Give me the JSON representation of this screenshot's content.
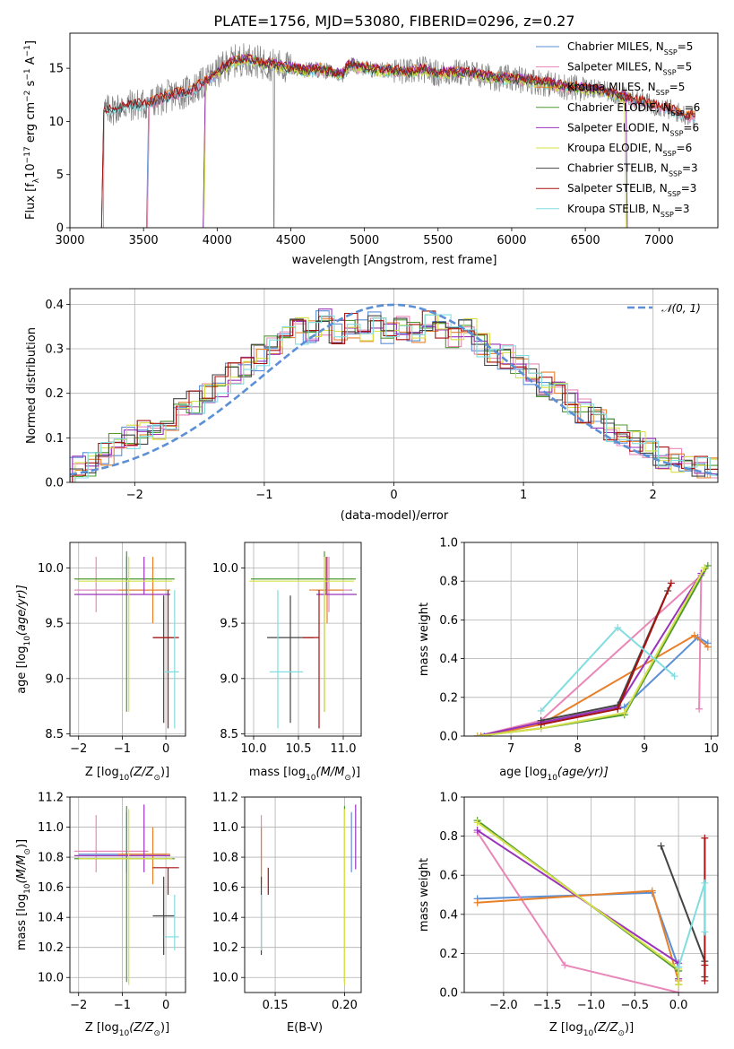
{
  "title": "PLATE=1756, MJD=53080, FIBERID=0296, z=0.27",
  "colors": {
    "chabrier_miles": "#5b8fd6",
    "salpeter_miles": "#e887b8",
    "kroupa_miles": "#e8802a",
    "chabrier_elodie": "#4e9a30",
    "salpeter_elodie": "#9933bb",
    "kroupa_elodie": "#d6e04a",
    "chabrier_stelib": "#444444",
    "salpeter_stelib": "#aa1111",
    "kroupa_stelib": "#80dde0",
    "data": "#808080",
    "normal": "#5b8fd6"
  },
  "chart_data": [
    {
      "type": "line",
      "name": "spectrum",
      "xlabel": "wavelength [Angstrom, rest frame]",
      "ylabel_prefix": "Flux [f",
      "ylabel_sub": "λ",
      "ylabel_rest": "10",
      "ylabel_sup": "−17",
      "ylabel_end": " erg cm",
      "ylabel_sup2": "−2",
      "ylabel_s": " s",
      "ylabel_sup3": "−1",
      "ylabel_a": " A",
      "ylabel_sup4": "−1",
      "ylabel_close": "]",
      "xlim": [
        3000,
        7400
      ],
      "ylim": [
        0,
        18.3
      ],
      "xticks": [
        "3000",
        "3500",
        "4000",
        "4500",
        "5000",
        "5500",
        "6000",
        "6500",
        "7000"
      ],
      "yticks": [
        "0",
        "5",
        "10",
        "15"
      ],
      "legend": [
        {
          "label": "Chabrier MILES, N",
          "sub": "SSP",
          "tail": "=5"
        },
        {
          "label": "Salpeter MILES, N",
          "sub": "SSP",
          "tail": "=5"
        },
        {
          "label": "Kroupa MILES, N",
          "sub": "SSP",
          "tail": "=5"
        },
        {
          "label": "Chabrier ELODIE, N",
          "sub": "SSP",
          "tail": "=6"
        },
        {
          "label": "Salpeter ELODIE, N",
          "sub": "SSP",
          "tail": "=6"
        },
        {
          "label": "Kroupa ELODIE, N",
          "sub": "SSP",
          "tail": "=6"
        },
        {
          "label": "Chabrier STELIB, N",
          "sub": "SSP",
          "tail": "=3"
        },
        {
          "label": "Salpeter STELIB, N",
          "sub": "SSP",
          "tail": "=3"
        },
        {
          "label": "Kroupa STELIB, N",
          "sub": "SSP",
          "tail": "=3"
        }
      ],
      "continuum_x": [
        3200,
        3300,
        3400,
        3500,
        3600,
        3700,
        3800,
        3900,
        4000,
        4100,
        4200,
        4300,
        4400,
        4500,
        4600,
        4700,
        4800,
        4850,
        4900,
        5000,
        5100,
        5200,
        5300,
        5400,
        5500,
        5600,
        5700,
        5800,
        5900,
        6000,
        6100,
        6200,
        6300,
        6400,
        6500,
        6600,
        6700,
        6800,
        6900,
        7000,
        7100,
        7200
      ],
      "continuum_y": [
        10.8,
        11.2,
        11.5,
        11.6,
        12.0,
        12.5,
        12.8,
        13.5,
        14.6,
        15.6,
        15.9,
        15.5,
        15.3,
        15.0,
        14.8,
        14.9,
        14.5,
        14.4,
        15.4,
        15.0,
        14.8,
        14.8,
        14.6,
        14.9,
        14.5,
        14.6,
        14.6,
        14.3,
        14.1,
        14.0,
        13.9,
        13.7,
        13.4,
        13.2,
        13.1,
        12.9,
        12.6,
        12.1,
        11.8,
        11.4,
        11.0,
        10.5
      ]
    },
    {
      "type": "bar",
      "name": "residual-histogram",
      "xlabel": "(data-model)/error",
      "ylabel": "Normed distribution",
      "xlim": [
        -2.5,
        2.5
      ],
      "ylim": [
        0,
        0.435
      ],
      "xticks": [
        "−2",
        "−1",
        "0",
        "1",
        "2"
      ],
      "yticks": [
        "0.0",
        "0.1",
        "0.2",
        "0.3",
        "0.4"
      ],
      "legend": [
        {
          "label": "𝒩(0, 1)"
        }
      ],
      "bin_edges_start": -2.5,
      "bin_width": 0.1,
      "heights": [
        0.03,
        0.04,
        0.06,
        0.08,
        0.1,
        0.11,
        0.12,
        0.14,
        0.16,
        0.18,
        0.2,
        0.22,
        0.25,
        0.26,
        0.28,
        0.3,
        0.32,
        0.34,
        0.34,
        0.36,
        0.34,
        0.35,
        0.34,
        0.36,
        0.33,
        0.35,
        0.34,
        0.36,
        0.35,
        0.32,
        0.34,
        0.31,
        0.29,
        0.28,
        0.26,
        0.24,
        0.22,
        0.2,
        0.18,
        0.16,
        0.14,
        0.12,
        0.1,
        0.09,
        0.07,
        0.06,
        0.05,
        0.04,
        0.03,
        0.03
      ]
    },
    {
      "type": "scatter",
      "name": "age-vs-metallicity",
      "xlabel": "Z [log",
      "xlabel_sub": "10",
      "xlabel_mid": "(Z/Z",
      "xlabel_sub2": "⊙",
      "xlabel_end": ")]",
      "ylabel": "age  [log",
      "ylabel_sub": "10",
      "ylabel_end": "(age/yr)]",
      "xlim": [
        -2.2,
        0.45
      ],
      "ylim": [
        8.48,
        10.23
      ],
      "xticks": [
        "−2",
        "−1",
        "0"
      ],
      "yticks": [
        "8.5",
        "9.0",
        "9.5",
        "10.0"
      ]
    },
    {
      "type": "scatter",
      "name": "age-vs-mass",
      "xlabel": "mass [log",
      "xlabel_sub": "10",
      "xlabel_end": "(M/M",
      "xlabel_sub2": "⊙",
      "xlabel_close": ")]",
      "xlim": [
        9.9,
        11.2
      ],
      "ylim": [
        8.48,
        10.23
      ],
      "xticks": [
        "10.0",
        "10.5",
        "11.0"
      ],
      "yticks": [
        "8.5",
        "9.0",
        "9.5",
        "10.0"
      ]
    },
    {
      "type": "line",
      "name": "mass-weight-vs-age",
      "xlabel": "age  [log",
      "xlabel_sub": "10",
      "xlabel_end": "(age/yr)]",
      "ylabel": "mass weight",
      "xlim": [
        6.3,
        10.1
      ],
      "ylim": [
        0,
        1.0
      ],
      "xticks": [
        "7",
        "8",
        "9",
        "10"
      ],
      "yticks": [
        "0.0",
        "0.2",
        "0.4",
        "0.6",
        "0.8",
        "1.0"
      ]
    },
    {
      "type": "scatter",
      "name": "mass-vs-metallicity",
      "xlabel": "Z [log",
      "xlabel_sub": "10",
      "xlabel_mid": "(Z/Z",
      "xlabel_sub2": "⊙",
      "xlabel_end": ")]",
      "ylabel": "mass [log",
      "ylabel_sub": "10",
      "ylabel_end": "(M/M",
      "ylabel_sub2": "⊙",
      "ylabel_close": ")]",
      "xlim": [
        -2.2,
        0.45
      ],
      "ylim": [
        9.9,
        11.2
      ],
      "xticks": [
        "−2",
        "−1",
        "0"
      ],
      "yticks": [
        "10.0",
        "10.2",
        "10.4",
        "10.6",
        "10.8",
        "11.0",
        "11.2"
      ]
    },
    {
      "type": "scatter",
      "name": "mass-vs-ebv",
      "xlabel": "E(B-V)",
      "xlim": [
        0.128,
        0.212
      ],
      "ylim": [
        9.9,
        11.2
      ],
      "xticks": [
        "0.15",
        "0.20"
      ],
      "yticks": [
        "10.0",
        "10.2",
        "10.4",
        "10.6",
        "10.8",
        "11.0",
        "11.2"
      ]
    },
    {
      "type": "line",
      "name": "mass-weight-vs-metallicity",
      "xlabel": "Z [log",
      "xlabel_sub": "10",
      "xlabel_mid": "(Z/Z",
      "xlabel_sub2": "⊙",
      "xlabel_end": ")]",
      "ylabel": "mass weight",
      "xlim": [
        -2.45,
        0.45
      ],
      "ylim": [
        0,
        1.0
      ],
      "xticks": [
        "−2.0",
        "−1.5",
        "−1.0",
        "−0.5",
        "0.0"
      ],
      "yticks": [
        "0.0",
        "0.2",
        "0.4",
        "0.6",
        "0.8",
        "1.0"
      ]
    }
  ],
  "fits": [
    {
      "key": "chabrier_miles",
      "Z": -0.9,
      "Zlo": -2.0,
      "Zhi": 0.0,
      "age": 9.8,
      "alo": 9.75,
      "ahi": 10.1,
      "mass": 10.82,
      "mlo": 10.7,
      "mhi": 11.1,
      "ebv": 0.205,
      "elo": 10.7,
      "ehi": 11.1,
      "age_pts": [
        [
          6.6,
          0.0
        ],
        [
          7.5,
          0.07
        ],
        [
          8.7,
          0.15
        ],
        [
          9.8,
          0.51
        ],
        [
          9.95,
          0.48
        ]
      ],
      "z_pts": [
        [
          -2.3,
          0.48
        ],
        [
          -0.3,
          0.51
        ],
        [
          0.0,
          0.13
        ],
        [
          0.0,
          0.11
        ]
      ]
    },
    {
      "key": "salpeter_miles",
      "Z": -1.6,
      "Zlo": -2.1,
      "Zhi": -0.4,
      "age": 9.8,
      "alo": 9.6,
      "ahi": 10.1,
      "mass": 10.84,
      "mlo": 10.7,
      "mhi": 11.08,
      "ebv": 0.14,
      "elo": 10.7,
      "ehi": 11.08,
      "age_pts": [
        [
          6.5,
          0.0
        ],
        [
          7.45,
          0.08
        ],
        [
          9.85,
          0.83
        ],
        [
          9.82,
          0.14
        ]
      ],
      "z_pts": [
        [
          -2.3,
          0.82
        ],
        [
          -1.3,
          0.14
        ],
        [
          0.0,
          0.0
        ]
      ]
    },
    {
      "key": "kroupa_miles",
      "Z": -0.3,
      "Zlo": -1.1,
      "Zhi": 0.1,
      "age": 9.8,
      "alo": 9.5,
      "ahi": 10.1,
      "mass": 10.82,
      "mlo": 10.62,
      "mhi": 11.0,
      "ebv": 0.14,
      "elo": 10.62,
      "ehi": 11.0,
      "age_pts": [
        [
          6.55,
          0.0
        ],
        [
          7.45,
          0.06
        ],
        [
          9.75,
          0.52
        ],
        [
          9.95,
          0.46
        ]
      ],
      "z_pts": [
        [
          -2.3,
          0.46
        ],
        [
          -0.3,
          0.52
        ],
        [
          0.0,
          0.06
        ],
        [
          0.0,
          0.04
        ]
      ]
    },
    {
      "key": "chabrier_elodie",
      "Z": -0.9,
      "Zlo": -2.1,
      "Zhi": 0.2,
      "age": 9.9,
      "alo": 8.7,
      "ahi": 10.15,
      "mass": 10.79,
      "mlo": 9.97,
      "mhi": 11.14,
      "ebv": 0.2,
      "elo": 9.97,
      "ehi": 11.14,
      "age_pts": [
        [
          6.5,
          0.0
        ],
        [
          7.45,
          0.04
        ],
        [
          8.7,
          0.11
        ],
        [
          9.95,
          0.88
        ]
      ],
      "z_pts": [
        [
          -2.3,
          0.88
        ],
        [
          0.0,
          0.11
        ],
        [
          0.0,
          0.04
        ]
      ]
    },
    {
      "key": "salpeter_elodie",
      "Z": -0.5,
      "Zlo": -2.1,
      "Zhi": 0.1,
      "age": 9.76,
      "alo": 9.76,
      "ahi": 10.1,
      "mass": 10.81,
      "mlo": 10.7,
      "mhi": 11.15,
      "ebv": 0.208,
      "elo": 10.72,
      "ehi": 11.15,
      "age_pts": [
        [
          6.5,
          0.0
        ],
        [
          7.45,
          0.07
        ],
        [
          8.6,
          0.15
        ],
        [
          9.85,
          0.84
        ]
      ],
      "z_pts": [
        [
          -2.3,
          0.83
        ],
        [
          0.0,
          0.15
        ],
        [
          0.0,
          0.07
        ]
      ]
    },
    {
      "key": "kroupa_elodie",
      "Z": -0.85,
      "Zlo": -2.0,
      "Zhi": 0.15,
      "age": 9.88,
      "alo": 8.7,
      "ahi": 10.1,
      "mass": 10.79,
      "mlo": 9.95,
      "mhi": 11.12,
      "ebv": 0.2,
      "elo": 9.95,
      "ehi": 11.12,
      "age_pts": [
        [
          6.5,
          0.0
        ],
        [
          7.45,
          0.04
        ],
        [
          8.7,
          0.12
        ],
        [
          9.9,
          0.87
        ]
      ],
      "z_pts": [
        [
          -2.3,
          0.87
        ],
        [
          0.0,
          0.12
        ],
        [
          0.0,
          0.04
        ]
      ]
    },
    {
      "key": "chabrier_stelib",
      "Z": -0.05,
      "Zlo": -0.3,
      "Zhi": 0.2,
      "age": 9.37,
      "alo": 8.6,
      "ahi": 9.75,
      "mass": 10.41,
      "mlo": 10.15,
      "mhi": 10.67,
      "ebv": 0.14,
      "elo": 10.15,
      "ehi": 10.67,
      "age_pts": [
        [
          7.45,
          0.08
        ],
        [
          8.6,
          0.16
        ],
        [
          9.35,
          0.75
        ]
      ],
      "z_pts": [
        [
          -0.2,
          0.75
        ],
        [
          0.3,
          0.16
        ],
        [
          0.3,
          0.08
        ]
      ]
    },
    {
      "key": "salpeter_stelib",
      "Z": 0.05,
      "Zlo": -0.3,
      "Zhi": 0.3,
      "age": 9.37,
      "alo": 8.55,
      "ahi": 9.8,
      "mass": 10.73,
      "mlo": 10.55,
      "mhi": 10.73,
      "ebv": 0.145,
      "elo": 10.55,
      "ehi": 10.73,
      "age_pts": [
        [
          7.45,
          0.06
        ],
        [
          8.6,
          0.14
        ],
        [
          9.4,
          0.79
        ]
      ],
      "z_pts": [
        [
          0.3,
          0.79
        ],
        [
          0.3,
          0.14
        ],
        [
          0.3,
          0.06
        ]
      ]
    },
    {
      "key": "kroupa_stelib",
      "Z": 0.2,
      "Zlo": -0.05,
      "Zhi": 0.3,
      "age": 9.06,
      "alo": 8.55,
      "ahi": 9.8,
      "mass": 10.27,
      "mlo": 10.18,
      "mhi": 10.55,
      "ebv": 0.14,
      "elo": 10.18,
      "ehi": 10.55,
      "age_pts": [
        [
          7.45,
          0.13
        ],
        [
          8.6,
          0.56
        ],
        [
          9.45,
          0.31
        ]
      ],
      "z_pts": [
        [
          0.0,
          0.13
        ],
        [
          0.3,
          0.56
        ],
        [
          0.3,
          0.31
        ]
      ]
    }
  ]
}
